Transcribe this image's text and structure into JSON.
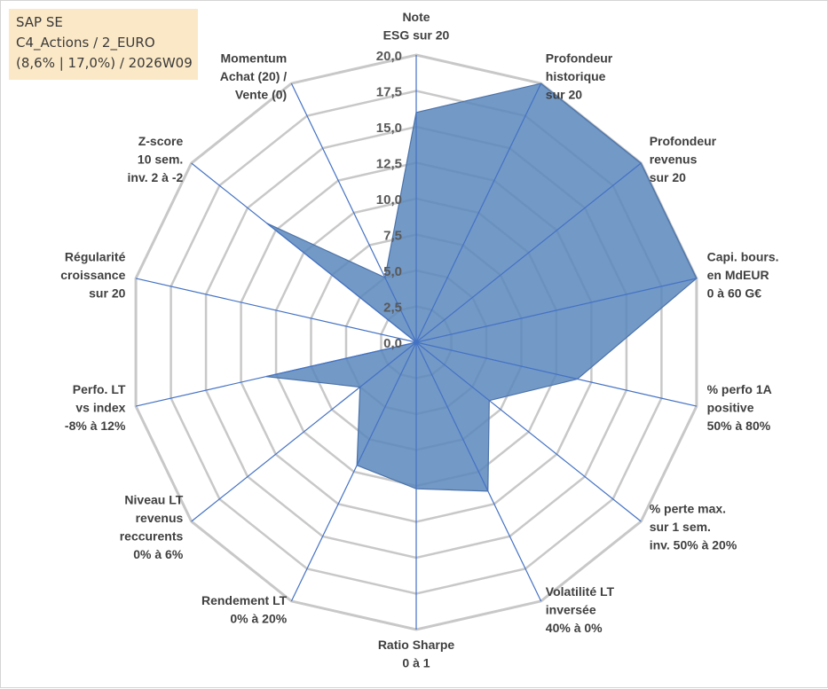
{
  "header": {
    "line1": "SAP SE",
    "line2": "C4_Actions / 2_EURO",
    "line3": "(8,6% | 17,0%) / 2026W09"
  },
  "colors": {
    "fill": "#5b87bd",
    "fill_opacity": "0.85",
    "outline": "#4c73a8",
    "spoke": "#4472c4",
    "grid": "#c8c8c8",
    "info_bg": "#fbe8c6"
  },
  "chart_data": {
    "type": "radar",
    "title": "",
    "rmin": 0,
    "rmax": 20,
    "ticks": [
      "0,0",
      "2,5",
      "5,0",
      "7,5",
      "10,0",
      "12,5",
      "15,0",
      "17,5",
      "20,0"
    ],
    "tick_values": [
      0,
      2.5,
      5,
      7.5,
      10,
      12.5,
      15,
      17.5,
      20
    ],
    "axes": [
      {
        "lines": [
          "Note",
          "ESG sur 20"
        ]
      },
      {
        "lines": [
          "Profondeur",
          "historique",
          "sur 20"
        ]
      },
      {
        "lines": [
          "Profondeur",
          "revenus",
          "sur 20"
        ]
      },
      {
        "lines": [
          "Capi. bours.",
          "en MdEUR",
          "0 à 60 G€"
        ]
      },
      {
        "lines": [
          "% perfo 1A",
          "positive",
          "50% à 80%"
        ]
      },
      {
        "lines": [
          "% perte max.",
          "sur 1 sem.",
          "inv. 50% à 20%"
        ]
      },
      {
        "lines": [
          "Volatilité LT",
          "inversée",
          "40% à 0%"
        ]
      },
      {
        "lines": [
          "Ratio Sharpe",
          "0 à 1"
        ]
      },
      {
        "lines": [
          "Rendement LT",
          "0% à 20%"
        ]
      },
      {
        "lines": [
          "Niveau LT",
          "revenus",
          "reccurents",
          "0% à 6%"
        ]
      },
      {
        "lines": [
          "Perfo. LT",
          "vs index",
          "-8% à 12%"
        ]
      },
      {
        "lines": [
          "Régularité",
          "croissance",
          "sur 20"
        ]
      },
      {
        "lines": [
          "Z-score",
          "10 sem.",
          "inv. 2 à -2"
        ]
      },
      {
        "lines": [
          "Momentum",
          "Achat (20) /",
          "Vente (0)"
        ]
      }
    ],
    "series": [
      {
        "name": "SAP SE",
        "values": [
          16,
          20,
          20,
          20,
          11.5,
          6.5,
          11.5,
          10.2,
          9.5,
          5,
          10.7,
          0,
          13.3,
          5
        ]
      }
    ]
  }
}
